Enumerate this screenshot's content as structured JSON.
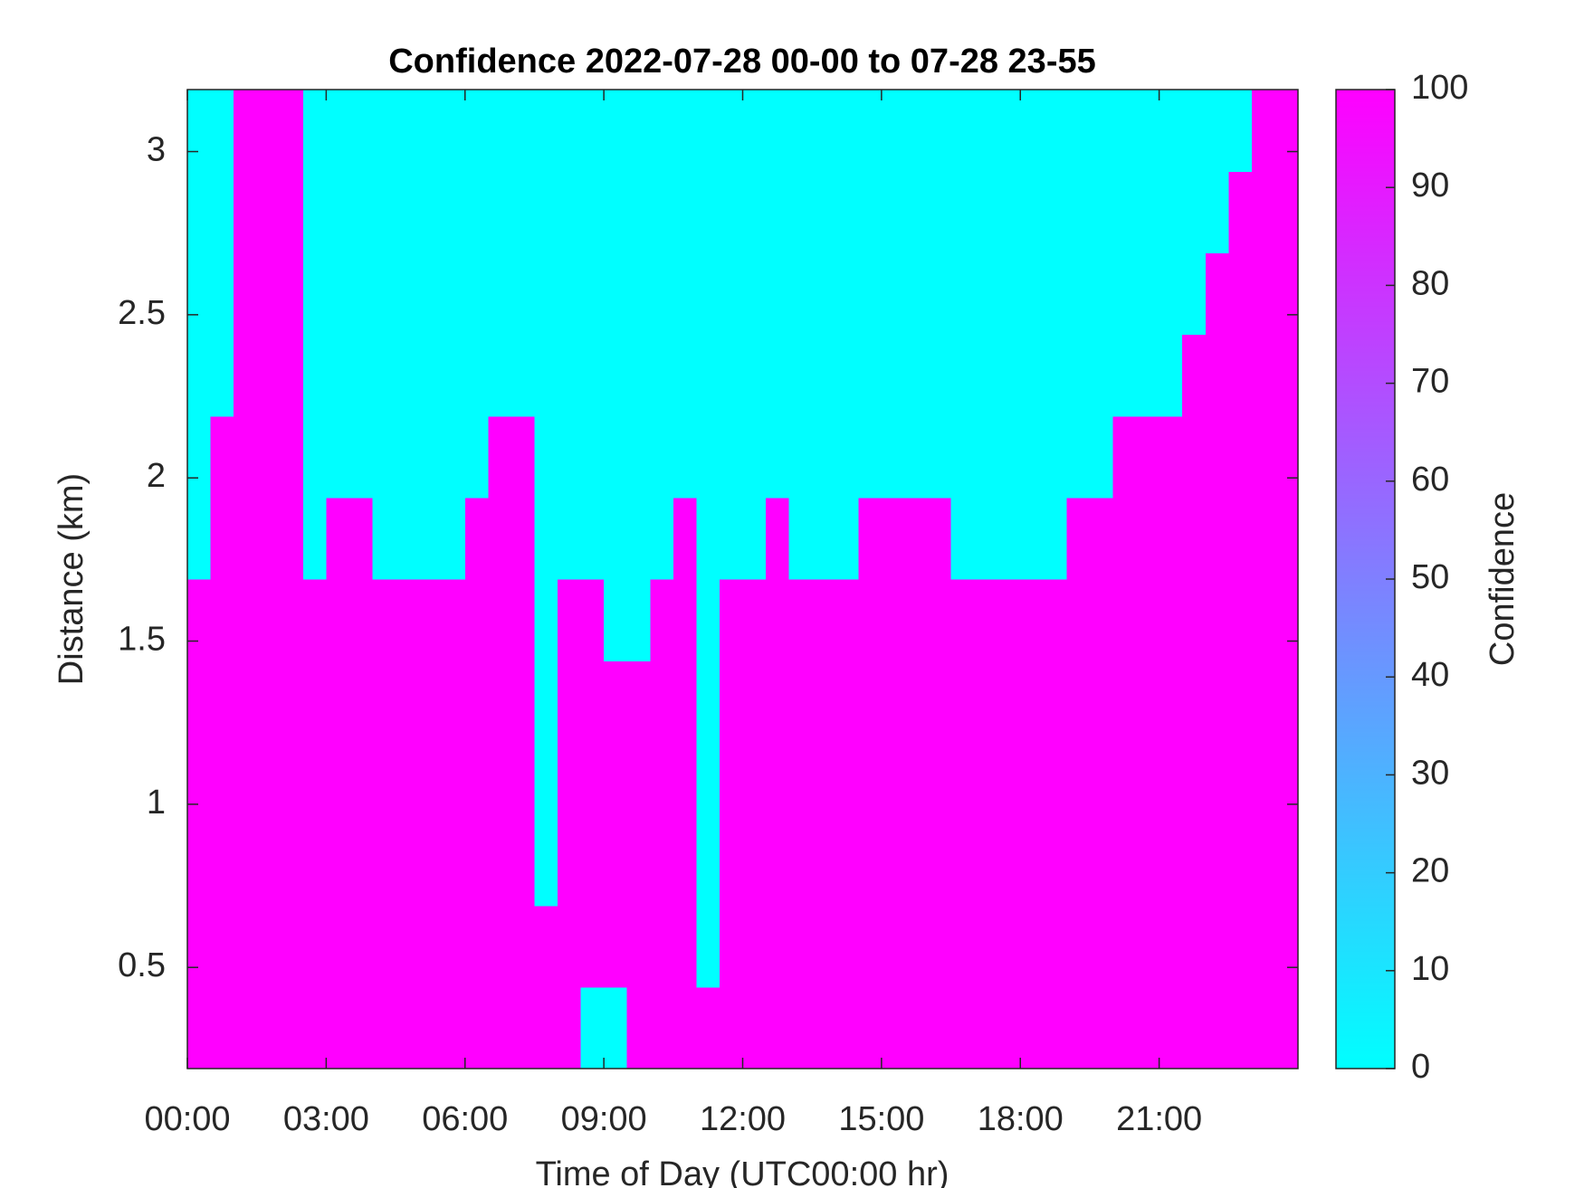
{
  "chart_data": {
    "type": "heatmap",
    "title": "Confidence 2022-07-28 00-00 to 07-28 23-55",
    "x_label": "Time of Day (UTC00:00 hr)",
    "y_label": "Distance (km)",
    "colorbar_label": "Confidence",
    "colormap": [
      "#00ffff",
      "#ff00ff"
    ],
    "xlim": [
      0,
      24
    ],
    "xticks": [
      {
        "value": 0,
        "label": "00:00"
      },
      {
        "value": 3,
        "label": "03:00"
      },
      {
        "value": 6,
        "label": "06:00"
      },
      {
        "value": 9,
        "label": "09:00"
      },
      {
        "value": 12,
        "label": "12:00"
      },
      {
        "value": 15,
        "label": "15:00"
      },
      {
        "value": 18,
        "label": "18:00"
      },
      {
        "value": 21,
        "label": "21:00"
      }
    ],
    "ylim": [
      0.19,
      3.19
    ],
    "yticks": [
      0.5,
      1,
      1.5,
      2,
      2.5,
      3
    ],
    "clim": [
      0,
      100
    ],
    "cticks": [
      0,
      10,
      20,
      30,
      40,
      50,
      60,
      70,
      80,
      90,
      100
    ],
    "x_edges": [
      0,
      0.5,
      1,
      1.5,
      2,
      2.5,
      3,
      3.5,
      4,
      4.5,
      5,
      5.5,
      6,
      6.5,
      7,
      7.5,
      8,
      8.5,
      9,
      9.5,
      10,
      10.5,
      11,
      11.5,
      12,
      12.5,
      13,
      13.5,
      14,
      14.5,
      15,
      15.5,
      16,
      16.5,
      17,
      17.5,
      18,
      18.5,
      19,
      19.5,
      20,
      20.5,
      21,
      21.5,
      22,
      22.5,
      23,
      23.5,
      24
    ],
    "y_edges": [
      0.19,
      0.44,
      0.69,
      0.94,
      1.19,
      1.44,
      1.69,
      1.94,
      2.19,
      2.44,
      2.69,
      2.94,
      3.19
    ],
    "z": [
      [
        100,
        100,
        100,
        100,
        100,
        100,
        100,
        100,
        100,
        100,
        100,
        100,
        100,
        100,
        100,
        100,
        100,
        0,
        0,
        100,
        100,
        100,
        100,
        100,
        100,
        100,
        100,
        100,
        100,
        100,
        100,
        100,
        100,
        100,
        100,
        100,
        100,
        100,
        100,
        100,
        100,
        100,
        100,
        100,
        100,
        100,
        100,
        100
      ],
      [
        100,
        100,
        100,
        100,
        100,
        100,
        100,
        100,
        100,
        100,
        100,
        100,
        100,
        100,
        100,
        100,
        100,
        100,
        100,
        100,
        100,
        100,
        0,
        100,
        100,
        100,
        100,
        100,
        100,
        100,
        100,
        100,
        100,
        100,
        100,
        100,
        100,
        100,
        100,
        100,
        100,
        100,
        100,
        100,
        100,
        100,
        100,
        100
      ],
      [
        100,
        100,
        100,
        100,
        100,
        100,
        100,
        100,
        100,
        100,
        100,
        100,
        100,
        100,
        100,
        0,
        100,
        100,
        100,
        100,
        100,
        100,
        0,
        100,
        100,
        100,
        100,
        100,
        100,
        100,
        100,
        100,
        100,
        100,
        100,
        100,
        100,
        100,
        100,
        100,
        100,
        100,
        100,
        100,
        100,
        100,
        100,
        100
      ],
      [
        100,
        100,
        100,
        100,
        100,
        100,
        100,
        100,
        100,
        100,
        100,
        100,
        100,
        100,
        100,
        0,
        100,
        100,
        100,
        100,
        100,
        100,
        0,
        100,
        100,
        100,
        100,
        100,
        100,
        100,
        100,
        100,
        100,
        100,
        100,
        100,
        100,
        100,
        100,
        100,
        100,
        100,
        100,
        100,
        100,
        100,
        100,
        100
      ],
      [
        100,
        100,
        100,
        100,
        100,
        100,
        100,
        100,
        100,
        100,
        100,
        100,
        100,
        100,
        100,
        0,
        100,
        100,
        100,
        100,
        100,
        100,
        0,
        100,
        100,
        100,
        100,
        100,
        100,
        100,
        100,
        100,
        100,
        100,
        100,
        100,
        100,
        100,
        100,
        100,
        100,
        100,
        100,
        100,
        100,
        100,
        100,
        100
      ],
      [
        100,
        100,
        100,
        100,
        100,
        100,
        100,
        100,
        100,
        100,
        100,
        100,
        100,
        100,
        100,
        0,
        100,
        100,
        0,
        0,
        100,
        100,
        0,
        100,
        100,
        100,
        100,
        100,
        100,
        100,
        100,
        100,
        100,
        100,
        100,
        100,
        100,
        100,
        100,
        100,
        100,
        100,
        100,
        100,
        100,
        100,
        100,
        100
      ],
      [
        0,
        100,
        100,
        100,
        100,
        0,
        100,
        100,
        0,
        0,
        0,
        0,
        100,
        100,
        100,
        0,
        0,
        0,
        0,
        0,
        0,
        100,
        0,
        0,
        0,
        100,
        0,
        0,
        0,
        100,
        100,
        100,
        100,
        0,
        0,
        0,
        0,
        0,
        100,
        100,
        100,
        100,
        100,
        100,
        100,
        100,
        100,
        100
      ],
      [
        0,
        100,
        100,
        100,
        100,
        0,
        0,
        0,
        0,
        0,
        0,
        0,
        0,
        100,
        100,
        0,
        0,
        0,
        0,
        0,
        0,
        0,
        0,
        0,
        0,
        0,
        0,
        0,
        0,
        0,
        0,
        0,
        0,
        0,
        0,
        0,
        0,
        0,
        0,
        0,
        100,
        100,
        100,
        100,
        100,
        100,
        100,
        100
      ],
      [
        0,
        0,
        100,
        100,
        100,
        0,
        0,
        0,
        0,
        0,
        0,
        0,
        0,
        0,
        0,
        0,
        0,
        0,
        0,
        0,
        0,
        0,
        0,
        0,
        0,
        0,
        0,
        0,
        0,
        0,
        0,
        0,
        0,
        0,
        0,
        0,
        0,
        0,
        0,
        0,
        0,
        0,
        0,
        100,
        100,
        100,
        100,
        100
      ],
      [
        0,
        0,
        100,
        100,
        100,
        0,
        0,
        0,
        0,
        0,
        0,
        0,
        0,
        0,
        0,
        0,
        0,
        0,
        0,
        0,
        0,
        0,
        0,
        0,
        0,
        0,
        0,
        0,
        0,
        0,
        0,
        0,
        0,
        0,
        0,
        0,
        0,
        0,
        0,
        0,
        0,
        0,
        0,
        0,
        100,
        100,
        100,
        100
      ],
      [
        0,
        0,
        100,
        100,
        100,
        0,
        0,
        0,
        0,
        0,
        0,
        0,
        0,
        0,
        0,
        0,
        0,
        0,
        0,
        0,
        0,
        0,
        0,
        0,
        0,
        0,
        0,
        0,
        0,
        0,
        0,
        0,
        0,
        0,
        0,
        0,
        0,
        0,
        0,
        0,
        0,
        0,
        0,
        0,
        0,
        100,
        100,
        100
      ],
      [
        0,
        0,
        100,
        100,
        100,
        0,
        0,
        0,
        0,
        0,
        0,
        0,
        0,
        0,
        0,
        0,
        0,
        0,
        0,
        0,
        0,
        0,
        0,
        0,
        0,
        0,
        0,
        0,
        0,
        0,
        0,
        0,
        0,
        0,
        0,
        0,
        0,
        0,
        0,
        0,
        0,
        0,
        0,
        0,
        0,
        0,
        100,
        100
      ]
    ]
  }
}
